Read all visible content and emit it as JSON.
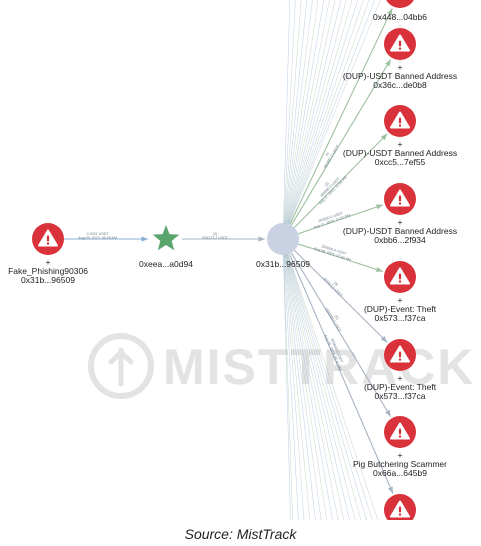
{
  "caption": "Source: MistTrack",
  "watermark": {
    "text": "MISTTRACK"
  },
  "colors": {
    "danger": "#d9323a",
    "star": "#5aa56e",
    "hub": "#c9d1e3",
    "edge_blue": "#8aaed6",
    "edge_green": "#9dc0a0",
    "edge_gray": "#a8b4c4",
    "watermark": "#e3e3e3"
  },
  "nodes": [
    {
      "id": "src",
      "type": "danger",
      "icon": "warning-icon",
      "plus": "+",
      "lines": [
        "Fake_Phishing90306",
        "0x31b...96509"
      ]
    },
    {
      "id": "mid",
      "type": "star",
      "icon": "star-icon",
      "plus": "",
      "lines": [
        "0xeea...a0d94"
      ]
    },
    {
      "id": "hub",
      "type": "hub",
      "icon": "",
      "plus": "",
      "lines": [
        "0x31b...96509"
      ]
    },
    {
      "id": "r0",
      "type": "danger",
      "icon": "warning-icon",
      "plus": "",
      "lines": [
        "0x448...04bb6"
      ]
    },
    {
      "id": "r1",
      "type": "danger",
      "icon": "warning-icon",
      "plus": "+",
      "lines": [
        "(DUP)-USDT Banned Address",
        "0x36c...de0b8"
      ]
    },
    {
      "id": "r2",
      "type": "danger",
      "icon": "warning-icon",
      "plus": "+",
      "lines": [
        "(DUP)-USDT Banned Address",
        "0xcc5...7ef55"
      ]
    },
    {
      "id": "r3",
      "type": "danger",
      "icon": "warning-icon",
      "plus": "+",
      "lines": [
        "(DUP)-USDT Banned Address",
        "0xbb6...2f934"
      ]
    },
    {
      "id": "r4",
      "type": "danger",
      "icon": "warning-icon",
      "plus": "+",
      "lines": [
        "(DUP)-Event: Theft",
        "0x573...f37ca"
      ]
    },
    {
      "id": "r5",
      "type": "danger",
      "icon": "warning-icon",
      "plus": "+",
      "lines": [
        "(DUP)-Event: Theft",
        "0x573...f37ca"
      ]
    },
    {
      "id": "r6",
      "type": "danger",
      "icon": "warning-icon",
      "plus": "+",
      "lines": [
        "Pig Butchering Scammer",
        "0x66a...645b9"
      ]
    },
    {
      "id": "r7",
      "type": "danger",
      "icon": "warning-icon",
      "plus": "",
      "lines": []
    }
  ],
  "edges": [
    {
      "from": "src",
      "to": "mid",
      "style": "blue",
      "labels": [
        "0.2531 USDT",
        "Aug 09, 2023, 06:28 AM"
      ]
    },
    {
      "from": "mid",
      "to": "hub",
      "style": "gray",
      "labels": [
        "(2)",
        "509373.2 USDT"
      ]
    },
    {
      "from": "hub",
      "to": "r0",
      "style": "green",
      "labels": []
    },
    {
      "from": "hub",
      "to": "r1",
      "style": "green",
      "labels": [
        "70",
        "802667.0 USDT"
      ]
    },
    {
      "from": "hub",
      "to": "r2",
      "style": "green",
      "labels": [
        "(2)",
        "400000.0 USDT",
        "Aug 17, 2023, 11:59 PM"
      ]
    },
    {
      "from": "hub",
      "to": "r3",
      "style": "green",
      "labels": [
        "200000.0 USDT",
        "Aug 17, 2023, 11:57 PM"
      ]
    },
    {
      "from": "hub",
      "to": "r4",
      "style": "green",
      "labels": [
        "200000.0 USDT",
        "Aug 09, 2023, 07:06 AM"
      ]
    },
    {
      "from": "hub",
      "to": "r5",
      "style": "gray",
      "labels": [
        "(3)",
        "352413.0 USDT"
      ]
    },
    {
      "from": "hub",
      "to": "r6",
      "style": "gray",
      "labels": [
        "(6)",
        "1800000.0 USDT"
      ]
    },
    {
      "from": "hub",
      "to": "r7",
      "style": "gray",
      "labels": [
        "800000.0 USDT",
        "Aug 09, 2023, 05:40 AM"
      ]
    }
  ]
}
